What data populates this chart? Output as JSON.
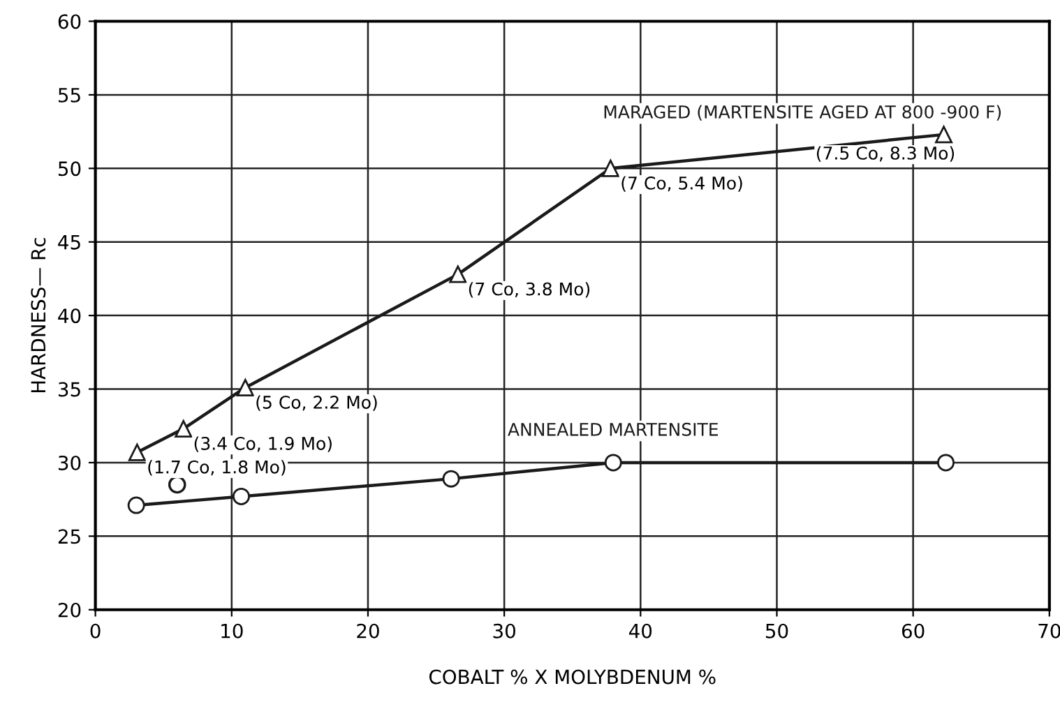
{
  "chart_data": {
    "type": "line",
    "xlabel": "COBALT % X MOLYBDENUM %",
    "ylabel": "HARDNESS— Rc",
    "xlim": [
      0,
      70
    ],
    "ylim": [
      20,
      60
    ],
    "xticks": [
      0,
      10,
      20,
      30,
      40,
      50,
      60,
      70
    ],
    "yticks": [
      20,
      25,
      30,
      35,
      40,
      45,
      50,
      55,
      60
    ],
    "grid": true,
    "legend": false,
    "series": [
      {
        "name": "MARAGED (MARTENSITE AGED AT 800 -900 F)",
        "color": "#1a1a1a",
        "marker": "triangle",
        "x": [
          3.06,
          6.46,
          11,
          26.6,
          37.8,
          62.25
        ],
        "values": [
          30.7,
          32.3,
          35.1,
          42.8,
          50.0,
          52.3
        ]
      },
      {
        "name": "ANNEALED MARTENSITE",
        "color": "#1a1a1a",
        "marker": "circle",
        "x": [
          3,
          10.7,
          26.1,
          38,
          62.4
        ],
        "values": [
          27.1,
          27.7,
          28.9,
          30.0,
          30.0
        ]
      },
      {
        "type": "scatter",
        "color": "#1a1a1a",
        "marker": "circle",
        "x": [
          6
        ],
        "values": [
          28.5
        ]
      }
    ],
    "annotations": [
      {
        "text": "(1.7 Co, 1.8 Mo)",
        "x": 3.06,
        "y": 30.7
      },
      {
        "text": "(3.4 Co, 1.9 Mo)",
        "x": 6.46,
        "y": 32.3
      },
      {
        "text": "(5 Co, 2.2 Mo)",
        "x": 11,
        "y": 35.1
      },
      {
        "text": "(7 Co, 3.8 Mo)",
        "x": 26.6,
        "y": 42.8
      },
      {
        "text": "(7 Co, 5.4 Mo)",
        "x": 37.8,
        "y": 50.0
      },
      {
        "text": "(7.5 Co, 8.3 Mo)",
        "x": 62.25,
        "y": 52.3
      }
    ]
  }
}
